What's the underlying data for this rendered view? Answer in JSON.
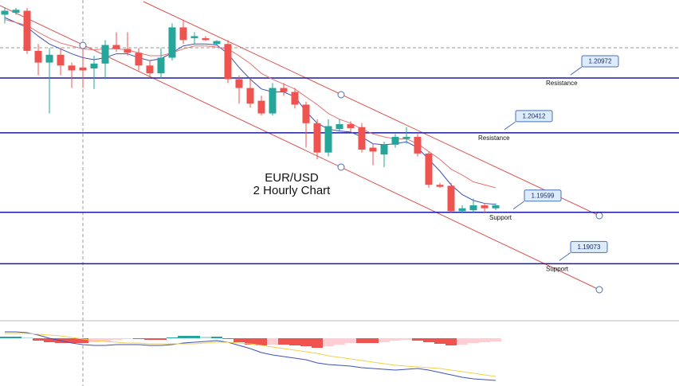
{
  "chart_data": [
    {
      "type": "candlestick",
      "title": "EUR/USD",
      "subtitle": "2 Hourly Chart",
      "ylim": [
        1.1849,
        1.2177
      ],
      "up_color": "#26a69a",
      "down_color": "#ef5350",
      "open": [
        1.2162,
        1.2164,
        1.2166,
        1.2125,
        1.2113,
        1.2121,
        1.211,
        1.2108,
        1.2107,
        1.2112,
        1.2131,
        1.2127,
        1.2123,
        1.211,
        1.2102,
        1.2118,
        1.2149,
        1.2138,
        1.2138,
        1.2132,
        1.2132,
        1.2096,
        1.2087,
        1.2074,
        1.2061,
        1.2087,
        1.2083,
        1.207,
        1.2051,
        1.2021,
        1.2045,
        1.205,
        1.2047,
        1.2026,
        1.2019,
        1.2029,
        1.2035,
        1.2037,
        1.202,
        1.1988,
        1.1987,
        1.1961,
        1.1962,
        1.1967,
        1.1964
      ],
      "high": [
        1.2169,
        1.2169,
        1.2169,
        1.2132,
        1.2128,
        1.2128,
        1.2113,
        1.2128,
        1.212,
        1.2136,
        1.2144,
        1.2144,
        1.2128,
        1.2115,
        1.2128,
        1.2153,
        1.2157,
        1.2144,
        1.214,
        1.2136,
        1.2136,
        1.21,
        1.2096,
        1.2079,
        1.2092,
        1.2092,
        1.2087,
        1.2073,
        1.2055,
        1.2055,
        1.2055,
        1.2053,
        1.2051,
        1.203,
        1.2032,
        1.204,
        1.2047,
        1.204,
        1.2022,
        1.199,
        1.199,
        1.1967,
        1.1974,
        1.1969,
        1.1969
      ],
      "low": [
        1.2153,
        1.2162,
        1.2122,
        1.21,
        1.2061,
        1.21,
        1.2087,
        1.2087,
        1.2086,
        1.2096,
        1.2124,
        1.212,
        1.2105,
        1.2099,
        1.2097,
        1.2115,
        1.2132,
        1.2132,
        1.2135,
        1.2131,
        1.2092,
        1.2071,
        1.2067,
        1.2059,
        1.2059,
        1.2079,
        1.2066,
        1.2026,
        1.2014,
        1.2017,
        1.2043,
        1.2042,
        1.2021,
        1.2008,
        1.2006,
        1.2026,
        1.203,
        1.2017,
        1.1985,
        1.1985,
        1.196,
        1.1959,
        1.1959,
        1.1959,
        1.1962
      ],
      "close": [
        1.2166,
        1.2167,
        1.2125,
        1.2113,
        1.2121,
        1.211,
        1.2105,
        1.2105,
        1.2112,
        1.2131,
        1.2127,
        1.2123,
        1.211,
        1.2102,
        1.2118,
        1.2149,
        1.2136,
        1.214,
        1.2136,
        1.2135,
        1.2096,
        1.2087,
        1.2071,
        1.2061,
        1.2087,
        1.2083,
        1.207,
        1.2051,
        1.2021,
        1.2048,
        1.205,
        1.2046,
        1.2024,
        1.2022,
        1.2029,
        1.2037,
        1.2037,
        1.202,
        1.1988,
        1.1986,
        1.1961,
        1.1964,
        1.1967,
        1.1964,
        1.1967
      ],
      "series": [
        {
          "color": "#3f51b5",
          "values": [
            1.2159,
            1.2154,
            1.2149,
            1.214,
            1.2132,
            1.2127,
            1.2122,
            1.2118,
            1.2116,
            1.2118,
            1.2122,
            1.2122,
            1.2118,
            1.2115,
            1.2117,
            1.2123,
            1.213,
            1.2132,
            1.2132,
            1.2131,
            1.2122,
            1.2108,
            1.2096,
            1.2086,
            1.2083,
            1.2083,
            1.2078,
            1.2063,
            1.2051,
            1.2045,
            1.2043,
            1.2042,
            1.2037,
            1.203,
            1.2029,
            1.203,
            1.2032,
            1.2026,
            1.2014,
            1.2002,
            1.1988,
            1.1978,
            1.1972,
            1.1969,
            1.1968
          ]
        },
        {
          "color": "#e57373",
          "values": [
            1.2157,
            1.2154,
            1.2151,
            1.2144,
            1.2138,
            1.2133,
            1.213,
            1.2127,
            1.2126,
            1.2127,
            1.2127,
            1.2126,
            1.2123,
            1.212,
            1.212,
            1.2123,
            1.2127,
            1.213,
            1.213,
            1.2129,
            1.2127,
            1.212,
            1.2112,
            1.2102,
            1.2096,
            1.2091,
            1.2086,
            1.2078,
            1.207,
            1.2061,
            1.2055,
            1.2051,
            1.2045,
            1.204,
            1.2037,
            1.2035,
            1.2035,
            1.203,
            1.2022,
            1.2014,
            1.2004,
            1.1998,
            1.1991,
            1.1988,
            1.1985
          ]
        }
      ],
      "levels": [
        {
          "value": 1.20972,
          "name": "Resistance"
        },
        {
          "value": 1.20412,
          "name": "Resistance"
        },
        {
          "value": 1.19599,
          "name": "Support"
        },
        {
          "value": 1.19073,
          "name": "Support"
        }
      ],
      "level_color": "#1a1aa0"
    },
    {
      "type": "macd",
      "ylim": [
        -60,
        20
      ],
      "histogram": [
        2,
        2,
        1,
        -3,
        -5,
        -6,
        -6,
        -6,
        -5,
        -4,
        -2,
        -1,
        -1,
        -2,
        -2,
        1,
        3,
        3,
        2,
        2,
        -1,
        -5,
        -8,
        -9,
        -8,
        -8,
        -9,
        -10,
        -12,
        -10,
        -8,
        -6,
        -6,
        -6,
        -5,
        -3,
        -2,
        -3,
        -5,
        -7,
        -9,
        -8,
        -6,
        -5,
        -4
      ],
      "series": [
        {
          "color": "#3f51b5",
          "values": [
            8,
            8,
            7,
            4,
            0,
            -3,
            -6,
            -8,
            -9,
            -9,
            -8,
            -8,
            -8,
            -9,
            -9,
            -8,
            -6,
            -5,
            -4,
            -3,
            -5,
            -9,
            -13,
            -18,
            -21,
            -23,
            -25,
            -27,
            -31,
            -33,
            -34,
            -35,
            -37,
            -38,
            -39,
            -40,
            -39,
            -38,
            -40,
            -43,
            -46,
            -49,
            -51,
            -52,
            -53
          ]
        },
        {
          "color": "#f2d04b",
          "values": [
            6,
            6,
            6,
            5,
            4,
            3,
            1,
            -1,
            -3,
            -4,
            -5,
            -6,
            -6,
            -7,
            -7,
            -7,
            -7,
            -7,
            -6,
            -5,
            -5,
            -6,
            -7,
            -9,
            -11,
            -13,
            -15,
            -17,
            -19,
            -22,
            -24,
            -26,
            -28,
            -30,
            -32,
            -34,
            -35,
            -36,
            -37,
            -38,
            -40,
            -42,
            -44,
            -46,
            -48
          ]
        }
      ]
    }
  ]
}
